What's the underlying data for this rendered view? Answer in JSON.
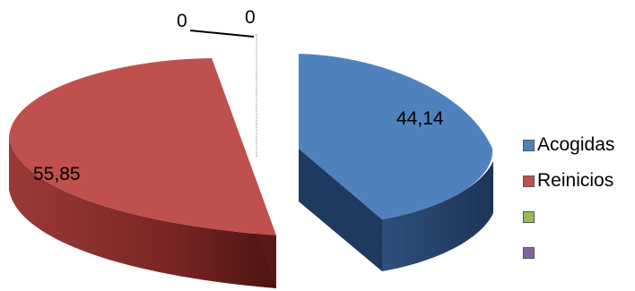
{
  "chart_data": {
    "type": "pie",
    "style": "3d-exploded",
    "title": "",
    "slices": [
      {
        "label": "Acogidas",
        "value": 44.14,
        "value_text": "44,14",
        "color": "#4f81bd"
      },
      {
        "label": "Reinicios",
        "value": 55.85,
        "value_text": "55,85",
        "color": "#c0504d"
      },
      {
        "label": "",
        "value": 0,
        "value_text": "0",
        "color": "#9bbb59"
      },
      {
        "label": "",
        "value": 0,
        "value_text": "0",
        "color": "#8064a2"
      }
    ],
    "legend_position": "right"
  }
}
